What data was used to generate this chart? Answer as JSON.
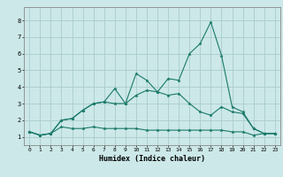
{
  "xlabel": "Humidex (Indice chaleur)",
  "ylabel": "",
  "background_color": "#cce8e8",
  "grid_color": "#aacccc",
  "line_color": "#1a7a6a",
  "xlim": [
    -0.5,
    23.5
  ],
  "ylim": [
    0.5,
    8.8
  ],
  "xticks": [
    0,
    1,
    2,
    3,
    4,
    5,
    6,
    7,
    8,
    9,
    10,
    11,
    12,
    13,
    14,
    15,
    16,
    17,
    18,
    19,
    20,
    21,
    22,
    23
  ],
  "yticks": [
    1,
    2,
    3,
    4,
    5,
    6,
    7,
    8
  ],
  "series": [
    [
      1.3,
      1.1,
      1.2,
      1.6,
      1.5,
      1.5,
      1.6,
      1.5,
      1.5,
      1.5,
      1.5,
      1.4,
      1.4,
      1.4,
      1.4,
      1.4,
      1.4,
      1.4,
      1.4,
      1.3,
      1.3,
      1.1,
      1.2,
      1.2
    ],
    [
      1.3,
      1.1,
      1.2,
      2.0,
      2.1,
      2.6,
      3.0,
      3.1,
      3.0,
      3.0,
      3.5,
      3.8,
      3.7,
      3.5,
      3.6,
      3.0,
      2.5,
      2.3,
      2.8,
      2.5,
      2.4,
      1.5,
      1.2,
      1.2
    ],
    [
      1.3,
      1.1,
      1.2,
      2.0,
      2.1,
      2.6,
      3.0,
      3.1,
      3.9,
      3.0,
      4.8,
      4.4,
      3.7,
      4.5,
      4.4,
      6.0,
      6.6,
      7.9,
      5.9,
      2.8,
      2.5,
      1.5,
      1.2,
      1.2
    ]
  ]
}
